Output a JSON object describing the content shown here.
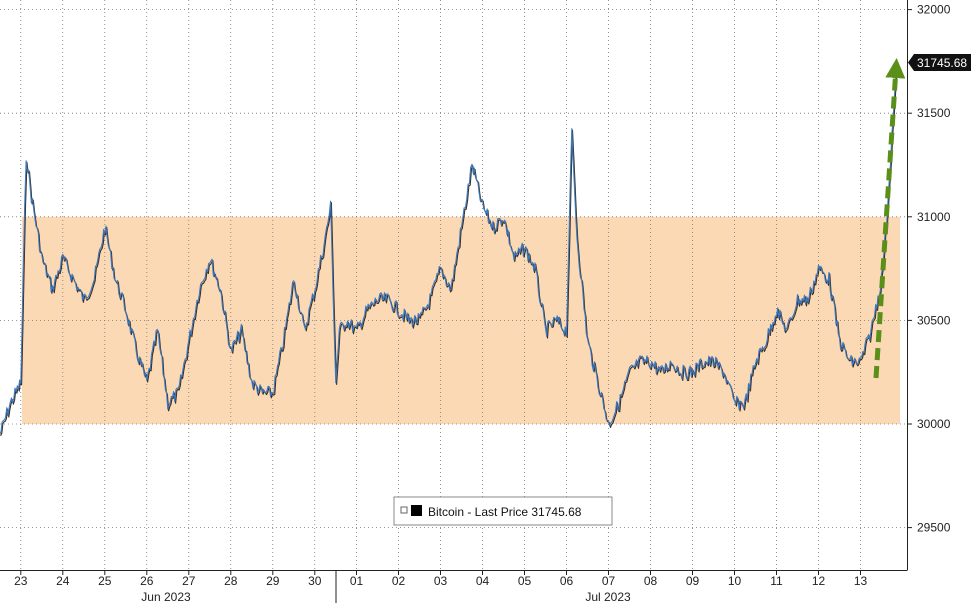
{
  "chart_data": {
    "type": "line",
    "title": "",
    "xlabel": "",
    "ylabel": "",
    "ylim": [
      29350,
      32050
    ],
    "y_ticks": [
      29500,
      30000,
      30500,
      31000,
      31500,
      32000
    ],
    "x_day_labels": [
      "23",
      "24",
      "25",
      "26",
      "27",
      "28",
      "29",
      "30",
      "01",
      "02",
      "03",
      "04",
      "05",
      "06",
      "07",
      "08",
      "09",
      "10",
      "11",
      "12",
      "13"
    ],
    "month_labels": [
      "Jun 2023",
      "Jul 2023"
    ],
    "grid": true,
    "legend": {
      "placement": "bottom-center",
      "text": "Bitcoin - Last Price 31745.68",
      "marker_color": "#000000"
    },
    "highlight_band": {
      "from": 30000,
      "to": 31000,
      "color": "#fbd9b5"
    },
    "last_price_label": "31745.68",
    "series": [
      {
        "name": "Bitcoin - Last Price",
        "color": "#3a78c2",
        "points": [
          [
            "06-22 12:00",
            29950
          ],
          [
            "06-22 18:00",
            30100
          ],
          [
            "06-23 00:00",
            30200
          ],
          [
            "06-23 03:00",
            31300
          ],
          [
            "06-23 06:00",
            31100
          ],
          [
            "06-23 12:00",
            30800
          ],
          [
            "06-23 18:00",
            30650
          ],
          [
            "06-24 00:00",
            30800
          ],
          [
            "06-24 12:00",
            30600
          ],
          [
            "06-24 18:00",
            30700
          ],
          [
            "06-25 00:00",
            30950
          ],
          [
            "06-25 06:00",
            30700
          ],
          [
            "06-25 12:00",
            30550
          ],
          [
            "06-25 18:00",
            30350
          ],
          [
            "06-26 00:00",
            30200
          ],
          [
            "06-26 06:00",
            30450
          ],
          [
            "06-26 12:00",
            30100
          ],
          [
            "06-26 18:00",
            30150
          ],
          [
            "06-27 00:00",
            30400
          ],
          [
            "06-27 06:00",
            30650
          ],
          [
            "06-27 12:00",
            30800
          ],
          [
            "06-27 18:00",
            30650
          ],
          [
            "06-28 00:00",
            30350
          ],
          [
            "06-28 06:00",
            30450
          ],
          [
            "06-28 12:00",
            30200
          ],
          [
            "06-28 18:00",
            30150
          ],
          [
            "06-29 00:00",
            30150
          ],
          [
            "06-29 06:00",
            30400
          ],
          [
            "06-29 12:00",
            30700
          ],
          [
            "06-29 18:00",
            30450
          ],
          [
            "06-30 00:00",
            30650
          ],
          [
            "06-30 06:00",
            30900
          ],
          [
            "06-30 09:00",
            31050
          ],
          [
            "06-30 12:00",
            30200
          ],
          [
            "06-30 14:00",
            30450
          ],
          [
            "06-30 18:00",
            30500
          ],
          [
            "07-01 00:00",
            30450
          ],
          [
            "07-01 06:00",
            30550
          ],
          [
            "07-01 12:00",
            30600
          ],
          [
            "07-01 18:00",
            30600
          ],
          [
            "07-02 00:00",
            30550
          ],
          [
            "07-02 06:00",
            30500
          ],
          [
            "07-02 12:00",
            30500
          ],
          [
            "07-02 18:00",
            30600
          ],
          [
            "07-03 00:00",
            30750
          ],
          [
            "07-03 06:00",
            30650
          ],
          [
            "07-03 12:00",
            30950
          ],
          [
            "07-03 15:00",
            31100
          ],
          [
            "07-03 18:00",
            31250
          ],
          [
            "07-04 00:00",
            31050
          ],
          [
            "07-04 06:00",
            30950
          ],
          [
            "07-04 12:00",
            31000
          ],
          [
            "07-04 18:00",
            30800
          ],
          [
            "07-05 00:00",
            30850
          ],
          [
            "07-05 06:00",
            30750
          ],
          [
            "07-05 12:00",
            30450
          ],
          [
            "07-05 18:00",
            30500
          ],
          [
            "07-06 00:00",
            30450
          ],
          [
            "07-06 03:00",
            31400
          ],
          [
            "07-06 06:00",
            30900
          ],
          [
            "07-06 12:00",
            30400
          ],
          [
            "07-06 18:00",
            30200
          ],
          [
            "07-07 00:00",
            30000
          ],
          [
            "07-07 06:00",
            30100
          ],
          [
            "07-07 12:00",
            30250
          ],
          [
            "07-07 18:00",
            30300
          ],
          [
            "07-08 00:00",
            30300
          ],
          [
            "07-08 06:00",
            30250
          ],
          [
            "07-08 12:00",
            30300
          ],
          [
            "07-08 18:00",
            30250
          ],
          [
            "07-09 00:00",
            30250
          ],
          [
            "07-09 06:00",
            30300
          ],
          [
            "07-09 12:00",
            30300
          ],
          [
            "07-09 18:00",
            30250
          ],
          [
            "07-10 00:00",
            30100
          ],
          [
            "07-10 06:00",
            30100
          ],
          [
            "07-10 12:00",
            30300
          ],
          [
            "07-10 18:00",
            30400
          ],
          [
            "07-11 00:00",
            30550
          ],
          [
            "07-11 06:00",
            30450
          ],
          [
            "07-11 12:00",
            30600
          ],
          [
            "07-11 18:00",
            30600
          ],
          [
            "07-12 00:00",
            30750
          ],
          [
            "07-12 06:00",
            30700
          ],
          [
            "07-12 12:00",
            30400
          ],
          [
            "07-12 18:00",
            30300
          ],
          [
            "07-13 00:00",
            30300
          ],
          [
            "07-13 06:00",
            30450
          ],
          [
            "07-13 12:00",
            30700
          ],
          [
            "07-13 15:00",
            31000
          ],
          [
            "07-13 18:00",
            31400
          ],
          [
            "07-13 21:00",
            31745.68
          ]
        ]
      }
    ]
  }
}
